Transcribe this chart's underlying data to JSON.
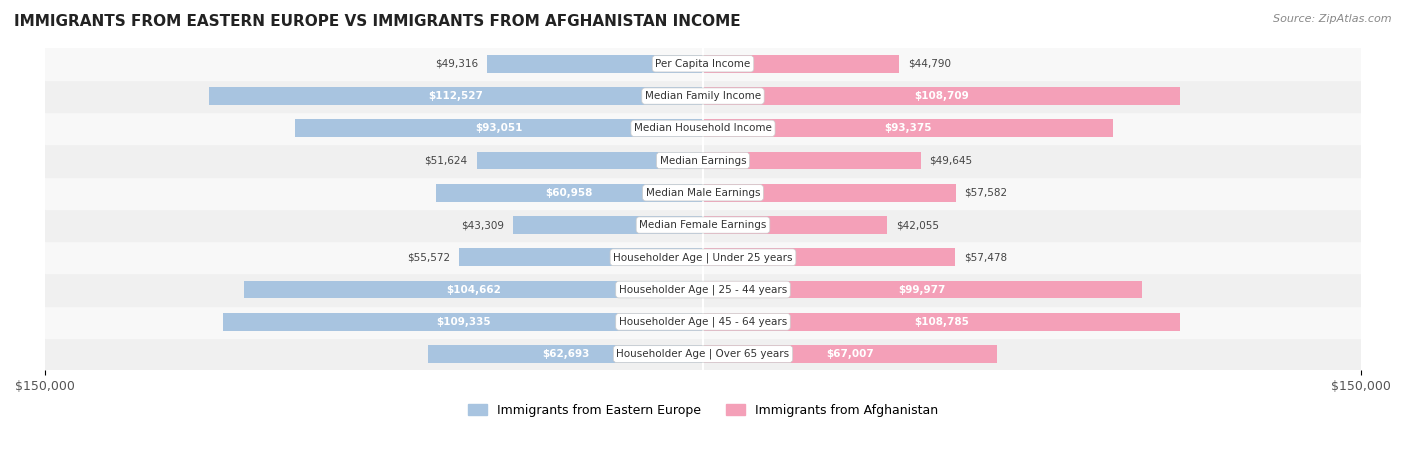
{
  "title": "IMMIGRANTS FROM EASTERN EUROPE VS IMMIGRANTS FROM AFGHANISTAN INCOME",
  "source": "Source: ZipAtlas.com",
  "categories": [
    "Per Capita Income",
    "Median Family Income",
    "Median Household Income",
    "Median Earnings",
    "Median Male Earnings",
    "Median Female Earnings",
    "Householder Age | Under 25 years",
    "Householder Age | 25 - 44 years",
    "Householder Age | 45 - 64 years",
    "Householder Age | Over 65 years"
  ],
  "eastern_europe": [
    49316,
    112527,
    93051,
    51624,
    60958,
    43309,
    55572,
    104662,
    109335,
    62693
  ],
  "afghanistan": [
    44790,
    108709,
    93375,
    49645,
    57582,
    42055,
    57478,
    99977,
    108785,
    67007
  ],
  "eastern_europe_labels": [
    "$49,316",
    "$112,527",
    "$93,051",
    "$51,624",
    "$60,958",
    "$43,309",
    "$55,572",
    "$104,662",
    "$109,335",
    "$62,693"
  ],
  "afghanistan_labels": [
    "$44,790",
    "$108,709",
    "$93,375",
    "$49,645",
    "$57,582",
    "$42,055",
    "$57,478",
    "$99,977",
    "$108,785",
    "$67,007"
  ],
  "max_value": 150000,
  "color_eastern_europe": "#a8c4e0",
  "color_afghanistan": "#f4a0b8",
  "color_eastern_europe_dark": "#7bafd4",
  "color_afghanistan_dark": "#f07090",
  "bg_color": "#f5f5f5",
  "row_bg_color": "#efefef",
  "legend_label_ee": "Immigrants from Eastern Europe",
  "legend_label_af": "Immigrants from Afghanistan",
  "xlabel_left": "$150,000",
  "xlabel_right": "$150,000"
}
